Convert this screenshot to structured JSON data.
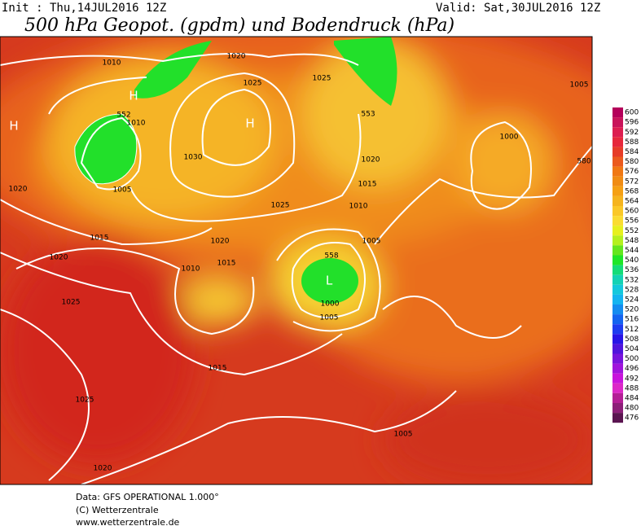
{
  "header": {
    "init": "Init : Thu,14JUL2016 12Z",
    "valid": "Valid: Sat,30JUL2016 12Z",
    "title": "500 hPa Geopot. (gpdm) und Bodendruck (hPa)"
  },
  "colorbar": {
    "labels": [
      "600",
      "596",
      "592",
      "588",
      "584",
      "580",
      "576",
      "572",
      "568",
      "564",
      "560",
      "556",
      "552",
      "548",
      "544",
      "540",
      "536",
      "532",
      "528",
      "524",
      "520",
      "516",
      "512",
      "508",
      "504",
      "500",
      "496",
      "492",
      "488",
      "484",
      "480",
      "476"
    ],
    "colors": [
      "#b4005a",
      "#c8145a",
      "#dc1e50",
      "#e6283c",
      "#e63c28",
      "#eb5a1e",
      "#f07814",
      "#f08c14",
      "#f5a014",
      "#f5b41e",
      "#fac828",
      "#fadc32",
      "#e6f01e",
      "#b4f01e",
      "#64e61e",
      "#1ee628",
      "#14dc78",
      "#14d2b4",
      "#14c8dc",
      "#14b4f0",
      "#148cf0",
      "#1464f0",
      "#1e3cf0",
      "#2814e6",
      "#5014dc",
      "#7814dc",
      "#a014dc",
      "#c814dc",
      "#dc28c8",
      "#b41e96",
      "#8c1e78",
      "#5a1450"
    ]
  },
  "isobars": {
    "labels": [
      "1010",
      "1020",
      "1025",
      "1025",
      "1005",
      "552",
      "1010",
      "553",
      "1030",
      "1000",
      "580",
      "1020",
      "1015",
      "1020",
      "1005",
      "1025",
      "1010",
      "1015",
      "1020",
      "1005",
      "1020",
      "1015",
      "1010",
      "558",
      "1025",
      "1000",
      "1005",
      "1015",
      "1025",
      "1005",
      "1020"
    ]
  },
  "pressure_centers": [
    "H",
    "H",
    "H",
    "L"
  ],
  "footer": {
    "line1": "Data: GFS OPERATIONAL 1.000°",
    "line2": "(C) Wetterzentrale",
    "line3": "www.wetterzentrale.de"
  }
}
